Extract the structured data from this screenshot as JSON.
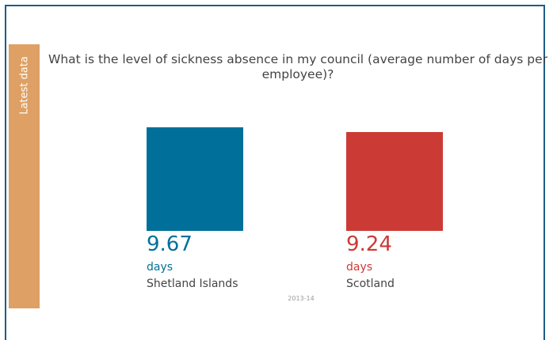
{
  "tab_label": "Latest data",
  "chart_data": {
    "type": "bar",
    "title": "What is the level of sickness absence in my council (average number of days per employee)?",
    "categories": [
      "Shetland Islands",
      "Scotland"
    ],
    "values": [
      9.67,
      9.24
    ],
    "value_labels": [
      "9.67",
      "9.24"
    ],
    "unit": "days",
    "colors": [
      "#00709a",
      "#cc3a35"
    ],
    "xlabel": "2013-14",
    "ylabel": ""
  }
}
